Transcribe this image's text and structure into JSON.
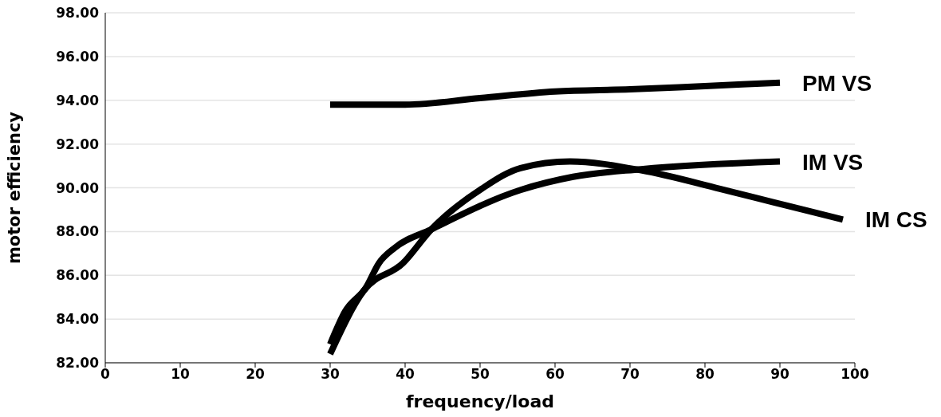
{
  "chart_data": {
    "type": "line",
    "xlabel": "frequency/load",
    "ylabel": "motor efficiency",
    "xlim": [
      0,
      100
    ],
    "xticks": [
      0,
      10,
      20,
      30,
      40,
      50,
      60,
      70,
      80,
      90,
      100
    ],
    "ylim": [
      82,
      98
    ],
    "yticks": [
      {
        "value": 82,
        "label": "82.00"
      },
      {
        "value": 84,
        "label": "84.00"
      },
      {
        "value": 86,
        "label": "86.00"
      },
      {
        "value": 88,
        "label": "88.00"
      },
      {
        "value": 90,
        "label": "90.00"
      },
      {
        "value": 92,
        "label": "92.00"
      },
      {
        "value": 94,
        "label": "94.00"
      },
      {
        "value": 96,
        "label": "96.00"
      },
      {
        "value": 98,
        "label": "98.00"
      }
    ],
    "grid": "y",
    "marker": "none",
    "line_style": "solid",
    "series": [
      {
        "name": "PM VS",
        "color": "#000000",
        "x": [
          30,
          40,
          50,
          60,
          70,
          80,
          90
        ],
        "values": [
          93.8,
          93.8,
          94.1,
          94.4,
          94.5,
          94.65,
          94.8
        ]
      },
      {
        "name": "IM VS",
        "color": "#000000",
        "x": [
          30,
          32,
          34.8,
          36.5,
          38.6,
          43.5,
          55.4,
          62.4,
          71.5,
          90
        ],
        "values": [
          82.85,
          84.35,
          85.45,
          86.55,
          87.25,
          88.1,
          89.9,
          90.5,
          90.85,
          91.2
        ]
      },
      {
        "name": "IM CS",
        "color": "#000000",
        "x": [
          30,
          34.5,
          39.7,
          43.5,
          50.2,
          55.4,
          62,
          71.5,
          82,
          89,
          98.4
        ],
        "values": [
          82.4,
          85.3,
          86.55,
          88.1,
          89.95,
          90.9,
          91.2,
          90.8,
          89.95,
          89.35,
          88.55
        ]
      }
    ]
  }
}
